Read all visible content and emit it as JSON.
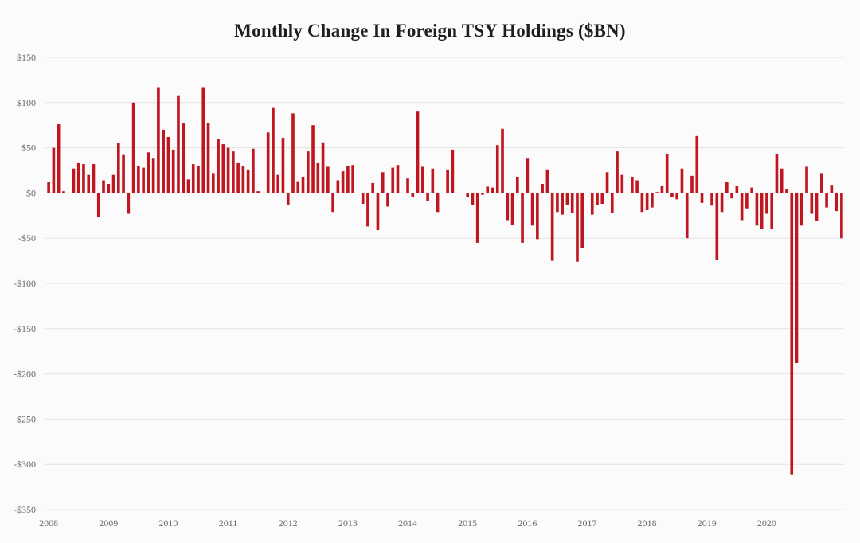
{
  "chart_data": {
    "type": "bar",
    "title": "Monthly Change In Foreign TSY Holdings  ($BN)",
    "xlabel": "",
    "ylabel": "",
    "ylim": [
      -350,
      150
    ],
    "y_ticks": [
      150,
      100,
      50,
      0,
      -50,
      -100,
      -150,
      -200,
      -250,
      -300,
      -350
    ],
    "y_tick_labels": [
      "$150",
      "$100",
      "$50",
      "$0",
      "-$50",
      "-$100",
      "-$150",
      "-$200",
      "-$250",
      "-$300",
      "-$350"
    ],
    "x_tick_labels": [
      "2008",
      "2009",
      "2010",
      "2011",
      "2012",
      "2013",
      "2014",
      "2015",
      "2016",
      "2017",
      "2018",
      "2019",
      "2020"
    ],
    "grid": "horizontal",
    "bar_color": "#c0161f",
    "series": [
      {
        "values": [
          12,
          50,
          76,
          2,
          0,
          27,
          33,
          32,
          20,
          32,
          -27,
          14,
          10,
          20,
          55,
          42,
          -23,
          100,
          30,
          28,
          45,
          38,
          117,
          70,
          62,
          48,
          108,
          77,
          15,
          32,
          30,
          117,
          77,
          22,
          60,
          54,
          50,
          46,
          33,
          30,
          26,
          49,
          2,
          0,
          67,
          94,
          20,
          61,
          -13,
          88,
          13,
          18,
          46,
          75,
          33,
          56,
          29,
          -21,
          14,
          24,
          30,
          31,
          0,
          -12,
          -37,
          11,
          -41,
          23,
          -15,
          28,
          31,
          0,
          16,
          -4,
          90,
          29,
          -9,
          27,
          -21,
          0,
          26,
          48,
          0,
          0,
          -5,
          -13,
          -55,
          -2,
          7,
          6,
          53,
          71,
          -30,
          -35,
          18,
          -55,
          38,
          -36,
          -51,
          10,
          26,
          -75,
          -21,
          -24,
          -13,
          -22,
          -76,
          -61,
          0,
          -24,
          -13,
          -12,
          23,
          -22,
          46,
          20,
          0,
          18,
          14,
          -21,
          -19,
          -16,
          1,
          8,
          43,
          -5,
          -7,
          27,
          -50,
          19,
          63,
          -11,
          0,
          -14,
          -74,
          -21,
          12,
          -6,
          8,
          -30,
          -17,
          6,
          -36,
          -40,
          -23,
          -40,
          43,
          27,
          4,
          -311,
          -188,
          -36,
          29,
          -23,
          -31,
          22,
          -16,
          9,
          -20,
          -50
        ]
      }
    ]
  }
}
